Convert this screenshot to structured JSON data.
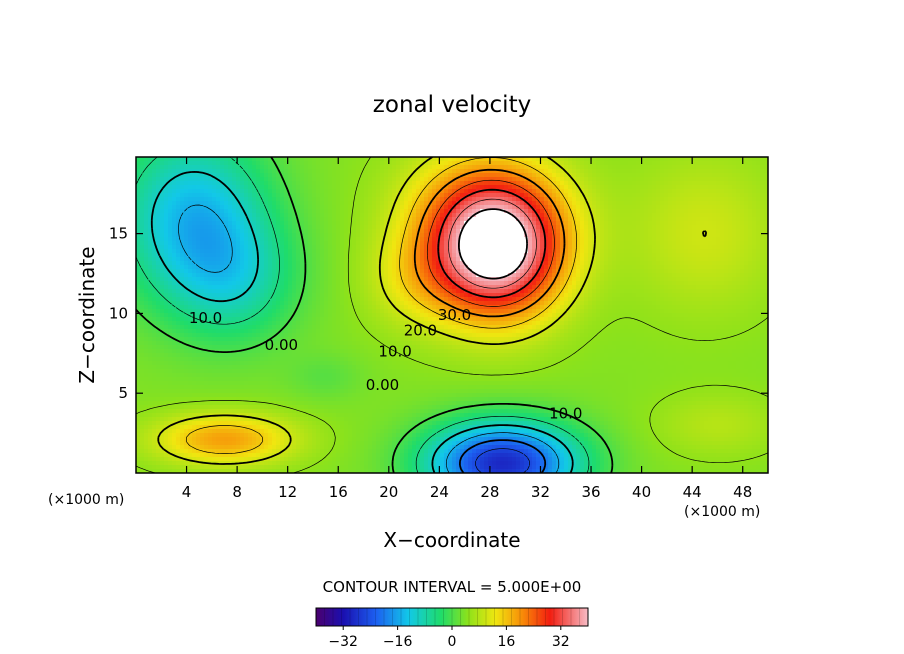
{
  "chart_data": {
    "type": "contour",
    "title": "zonal velocity",
    "xlabel": "X−coordinate",
    "ylabel": "Z−coordinate",
    "x_unit_label": "(×1000 m)",
    "y_unit_label": "(×1000 m)",
    "xlim": [
      0,
      50
    ],
    "ylim": [
      0,
      19.8
    ],
    "xticks": [
      4,
      8,
      12,
      16,
      20,
      24,
      28,
      32,
      36,
      40,
      44,
      48
    ],
    "yticks": [
      5,
      10,
      15
    ],
    "contour_interval_text": "CONTOUR INTERVAL = 5.000E+00",
    "contour_labels": [
      {
        "text": "10.0",
        "x": 5.5,
        "y": 9.4
      },
      {
        "text": "0.00",
        "x": 11.5,
        "y": 7.7
      },
      {
        "text": "30.0",
        "x": 25.2,
        "y": 9.6
      },
      {
        "text": "20.0",
        "x": 22.5,
        "y": 8.6
      },
      {
        "text": "10.0",
        "x": 20.5,
        "y": 7.3
      },
      {
        "text": "0.00",
        "x": 19.5,
        "y": 5.2
      },
      {
        "text": "10.0",
        "x": 34.0,
        "y": 3.4
      }
    ],
    "value_range": [
      -40,
      40
    ],
    "colorbar_ticks": [
      -32,
      -16,
      0,
      16,
      32
    ],
    "colorbar_tick_labels": [
      "−32",
      "−16",
      "0",
      "16",
      "32"
    ],
    "features": [
      {
        "kind": "jet_max",
        "x": 28,
        "y": 14,
        "value": 40
      },
      {
        "kind": "min",
        "x": 29,
        "y": 1.0,
        "value": -30
      },
      {
        "kind": "min",
        "x": 4,
        "y": 17,
        "value": -20
      },
      {
        "kind": "local_max",
        "x": 7,
        "y": 2.0,
        "value": 18
      }
    ]
  }
}
